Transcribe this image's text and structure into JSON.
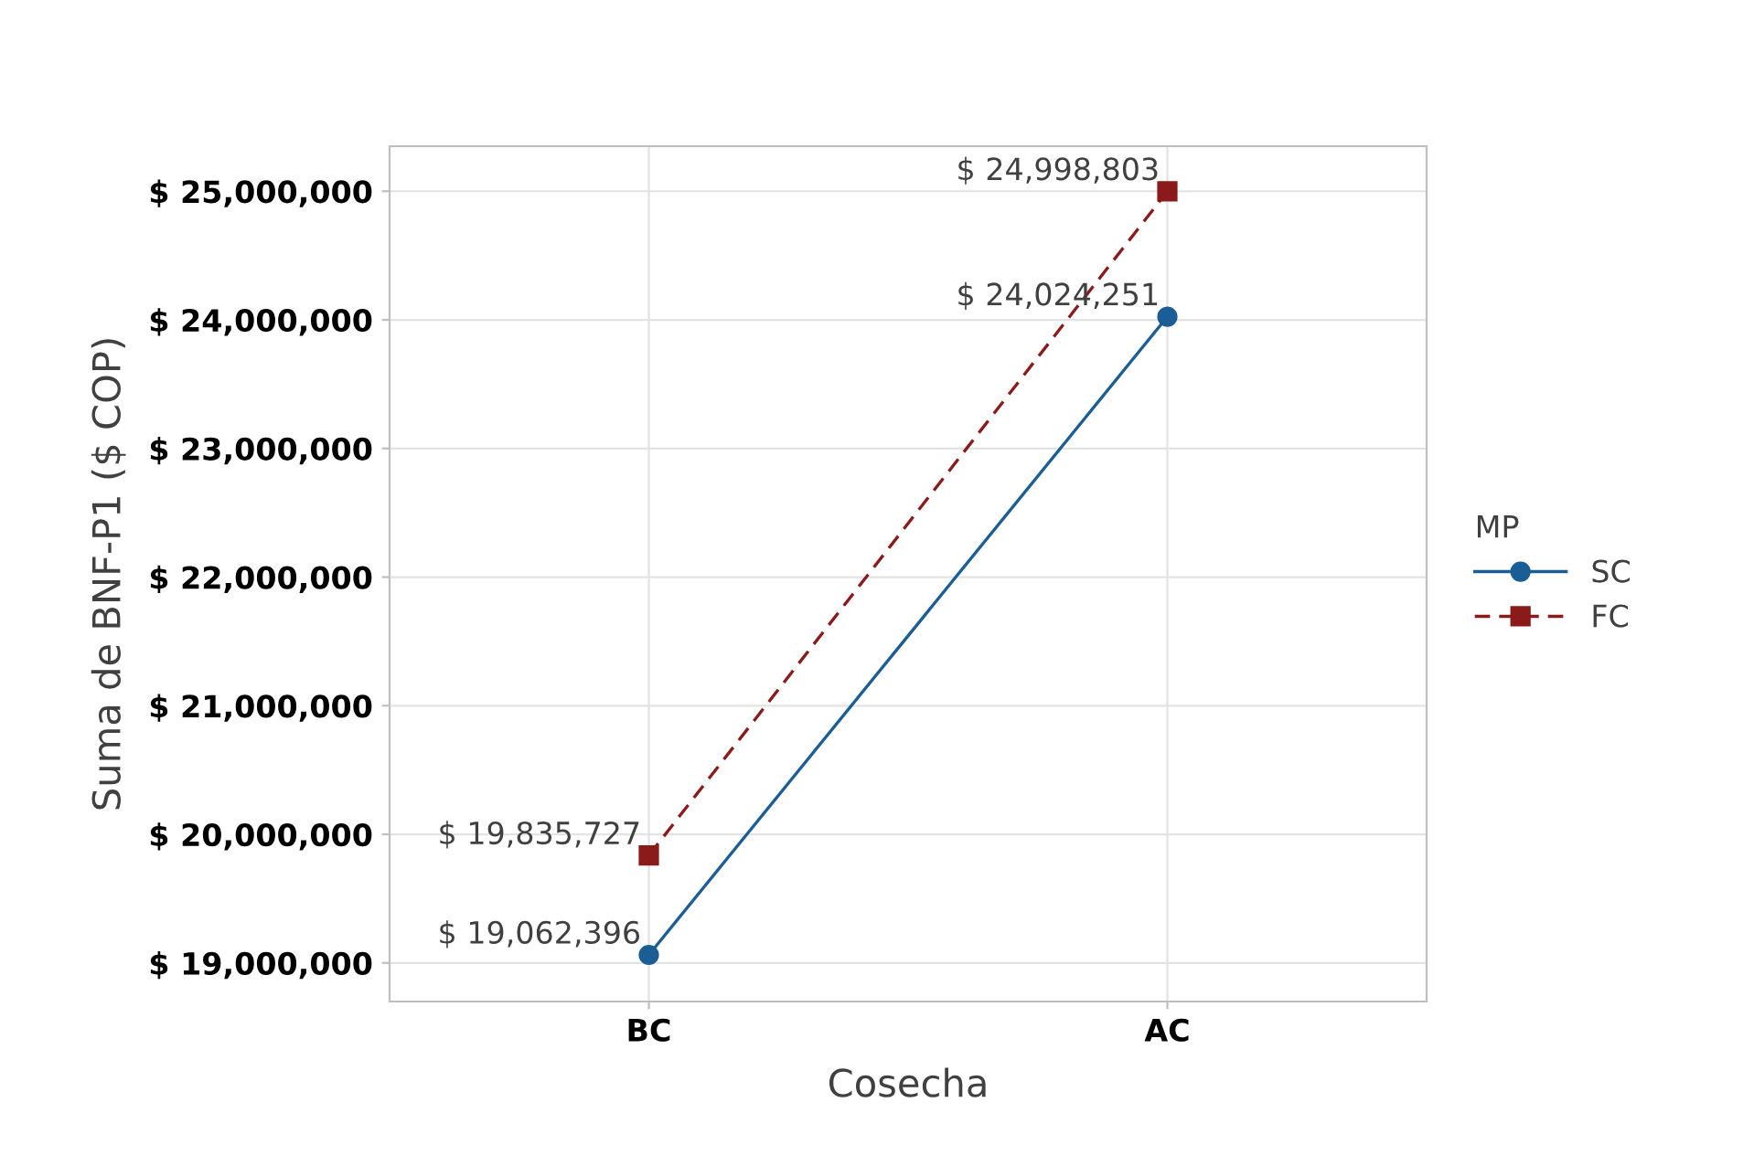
{
  "chart_data": {
    "type": "line",
    "xlabel": "Cosecha",
    "ylabel": "Suma de BNF-P1 ($ COP)",
    "legend_title": "MP",
    "categories": [
      "BC",
      "AC"
    ],
    "series": [
      {
        "name": "SC",
        "color": "#1b5e96",
        "marker": "circle",
        "line_style": "solid",
        "values": [
          19062396,
          24024251
        ],
        "value_labels": [
          "$ 19,062,396",
          "$ 24,024,251"
        ]
      },
      {
        "name": "FC",
        "color": "#8b1a1a",
        "marker": "square",
        "line_style": "dashed",
        "values": [
          19835727,
          24998803
        ],
        "value_labels": [
          "$ 19,835,727",
          "$ 24,998,803"
        ]
      }
    ],
    "ylim": [
      18700000,
      25350000
    ],
    "yticks": [
      {
        "value": 19000000,
        "label": "$ 19,000,000"
      },
      {
        "value": 20000000,
        "label": "$ 20,000,000"
      },
      {
        "value": 21000000,
        "label": "$ 21,000,000"
      },
      {
        "value": 22000000,
        "label": "$ 22,000,000"
      },
      {
        "value": 23000000,
        "label": "$ 23,000,000"
      },
      {
        "value": 24000000,
        "label": "$ 24,000,000"
      },
      {
        "value": 25000000,
        "label": "$ 25,000,000"
      }
    ],
    "grid": true,
    "legend": "right"
  }
}
